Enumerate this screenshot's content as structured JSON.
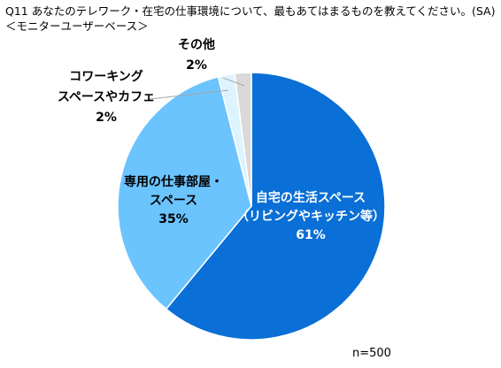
{
  "header": {
    "title": "Q11 あなたのテレワーク・在宅の仕事環境について、最もあてはまるものを教えてください。(SA)",
    "subtitle": "＜モニターユーザーベース＞"
  },
  "chart_data": {
    "type": "pie",
    "title": "Q11 あなたのテレワーク・在宅の仕事環境について、最もあてはまるものを教えてください。(SA)",
    "subtitle": "＜モニターユーザーベース＞",
    "start": "12 o'clock",
    "direction": "clockwise",
    "slices": [
      {
        "label_lines": [
          "自宅の生活スペース",
          "（リビングやキッチン等）"
        ],
        "value": 61,
        "pct_text": "61%",
        "color": "#0a6fd6",
        "label_color": "#ffffff"
      },
      {
        "label_lines": [
          "専用の仕事部屋・",
          "スペース"
        ],
        "value": 35,
        "pct_text": "35%",
        "color": "#6cc4ff",
        "label_color": "#000000"
      },
      {
        "label_lines": [
          "コワーキング",
          "スペースやカフェ"
        ],
        "value": 2,
        "pct_text": "2%",
        "color": "#ddf4ff",
        "label_color": "#000000"
      },
      {
        "label_lines": [
          "その他"
        ],
        "value": 2,
        "pct_text": "2%",
        "color": "#d9d9d9",
        "label_color": "#000000"
      }
    ],
    "note": "n=500"
  },
  "colors": {
    "slice_border": "#ffffff",
    "leader_line": "#a6a6a6"
  }
}
